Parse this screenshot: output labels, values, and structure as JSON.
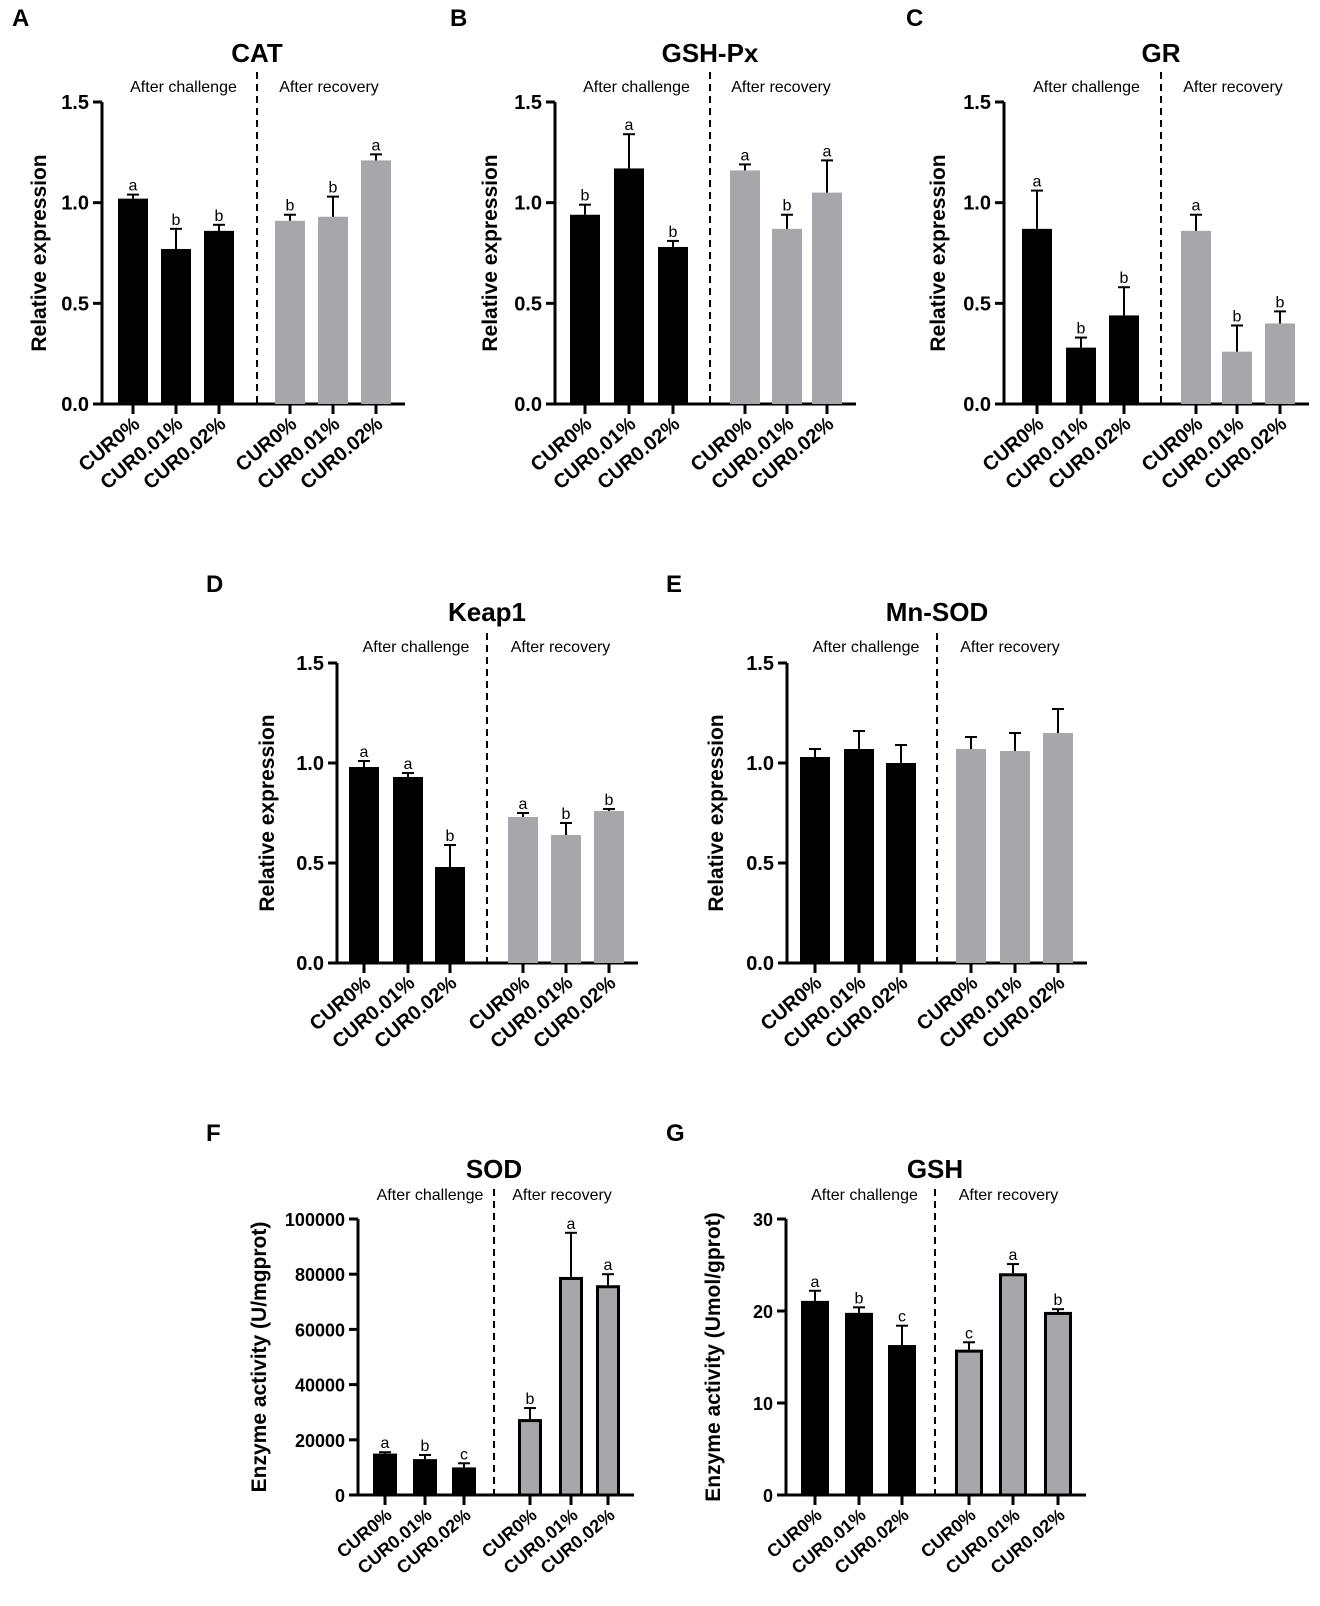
{
  "figure": {
    "group_labels": [
      "After challenge",
      "After recovery"
    ],
    "colors": {
      "challenge": "#000000",
      "recovery": "#a7a6ab",
      "axis": "#000000"
    }
  },
  "chart_data": [
    {
      "panel": "A",
      "type": "bar",
      "title": "CAT",
      "ylabel": "Relative expression",
      "ylim": [
        0,
        1.5
      ],
      "yticks": [
        0.0,
        0.5,
        1.0,
        1.5
      ],
      "ytick_labels": [
        "0.0",
        "0.5",
        "1.0",
        "1.5"
      ],
      "categories": [
        "CUR0%",
        "CUR0.01%",
        "CUR0.02%",
        "CUR0%",
        "CUR0.01%",
        "CUR0.02%"
      ],
      "groups": [
        "After challenge",
        "After challenge",
        "After challenge",
        "After recovery",
        "After recovery",
        "After recovery"
      ],
      "values": [
        1.02,
        0.77,
        0.86,
        0.91,
        0.93,
        1.21
      ],
      "errors": [
        0.02,
        0.1,
        0.03,
        0.03,
        0.1,
        0.03
      ],
      "letters": [
        "a",
        "b",
        "b",
        "b",
        "b",
        "a"
      ]
    },
    {
      "panel": "B",
      "type": "bar",
      "title": "GSH-Px",
      "ylabel": "Relative expression",
      "ylim": [
        0,
        1.5
      ],
      "yticks": [
        0.0,
        0.5,
        1.0,
        1.5
      ],
      "ytick_labels": [
        "0.0",
        "0.5",
        "1.0",
        "1.5"
      ],
      "categories": [
        "CUR0%",
        "CUR0.01%",
        "CUR0.02%",
        "CUR0%",
        "CUR0.01%",
        "CUR0.02%"
      ],
      "groups": [
        "After challenge",
        "After challenge",
        "After challenge",
        "After recovery",
        "After recovery",
        "After recovery"
      ],
      "values": [
        0.94,
        1.17,
        0.78,
        1.16,
        0.87,
        1.05
      ],
      "errors": [
        0.05,
        0.17,
        0.03,
        0.03,
        0.07,
        0.16
      ],
      "letters": [
        "b",
        "a",
        "b",
        "a",
        "b",
        "a"
      ]
    },
    {
      "panel": "C",
      "type": "bar",
      "title": "GR",
      "ylabel": "Relative expression",
      "ylim": [
        0,
        1.5
      ],
      "yticks": [
        0.0,
        0.5,
        1.0,
        1.5
      ],
      "ytick_labels": [
        "0.0",
        "0.5",
        "1.0",
        "1.5"
      ],
      "categories": [
        "CUR0%",
        "CUR0.01%",
        "CUR0.02%",
        "CUR0%",
        "CUR0.01%",
        "CUR0.02%"
      ],
      "groups": [
        "After challenge",
        "After challenge",
        "After challenge",
        "After recovery",
        "After recovery",
        "After recovery"
      ],
      "values": [
        0.87,
        0.28,
        0.44,
        0.86,
        0.26,
        0.4
      ],
      "errors": [
        0.19,
        0.05,
        0.14,
        0.08,
        0.13,
        0.06
      ],
      "letters": [
        "a",
        "b",
        "b",
        "a",
        "b",
        "b"
      ]
    },
    {
      "panel": "D",
      "type": "bar",
      "title": "Keap1",
      "ylabel": "Relative expression",
      "ylim": [
        0,
        1.5
      ],
      "yticks": [
        0.0,
        0.5,
        1.0,
        1.5
      ],
      "ytick_labels": [
        "0.0",
        "0.5",
        "1.0",
        "1.5"
      ],
      "categories": [
        "CUR0%",
        "CUR0.01%",
        "CUR0.02%",
        "CUR0%",
        "CUR0.01%",
        "CUR0.02%"
      ],
      "groups": [
        "After challenge",
        "After challenge",
        "After challenge",
        "After recovery",
        "After recovery",
        "After recovery"
      ],
      "values": [
        0.98,
        0.93,
        0.48,
        0.73,
        0.64,
        0.76
      ],
      "errors": [
        0.03,
        0.02,
        0.11,
        0.02,
        0.06,
        0.01
      ],
      "letters": [
        "a",
        "a",
        "b",
        "a",
        "b",
        "b"
      ]
    },
    {
      "panel": "E",
      "type": "bar",
      "title": "Mn-SOD",
      "ylabel": "Relative expression",
      "ylim": [
        0,
        1.5
      ],
      "yticks": [
        0.0,
        0.5,
        1.0,
        1.5
      ],
      "ytick_labels": [
        "0.0",
        "0.5",
        "1.0",
        "1.5"
      ],
      "categories": [
        "CUR0%",
        "CUR0.01%",
        "CUR0.02%",
        "CUR0%",
        "CUR0.01%",
        "CUR0.02%"
      ],
      "groups": [
        "After challenge",
        "After challenge",
        "After challenge",
        "After recovery",
        "After recovery",
        "After recovery"
      ],
      "values": [
        1.03,
        1.07,
        1.0,
        1.07,
        1.06,
        1.15
      ],
      "errors": [
        0.04,
        0.09,
        0.09,
        0.06,
        0.09,
        0.12
      ],
      "letters": [
        "",
        "",
        "",
        "",
        "",
        ""
      ]
    },
    {
      "panel": "F",
      "type": "bar",
      "title": "SOD",
      "ylabel": "Enzyme activity (U/mgprot)",
      "ylim": [
        0,
        100000
      ],
      "yticks": [
        0,
        20000,
        40000,
        60000,
        80000,
        100000
      ],
      "ytick_labels": [
        "0",
        "20000",
        "40000",
        "60000",
        "80000",
        "100000"
      ],
      "categories": [
        "CUR0%",
        "CUR0.01%",
        "CUR0.02%",
        "CUR0%",
        "CUR0.01%",
        "CUR0.02%"
      ],
      "groups": [
        "After challenge",
        "After challenge",
        "After challenge",
        "After recovery",
        "After recovery",
        "After recovery"
      ],
      "values": [
        15000,
        13000,
        10000,
        27500,
        79000,
        76000
      ],
      "errors": [
        500,
        1500,
        1500,
        4000,
        16000,
        4000
      ],
      "letters": [
        "a",
        "b",
        "c",
        "b",
        "a",
        "a"
      ]
    },
    {
      "panel": "G",
      "type": "bar",
      "title": "GSH",
      "ylabel": "Enzyme activity (Umol/gprot)",
      "ylim": [
        0,
        30
      ],
      "yticks": [
        0,
        10,
        20,
        30
      ],
      "ytick_labels": [
        "0",
        "10",
        "20",
        "30"
      ],
      "categories": [
        "CUR0%",
        "CUR0.01%",
        "CUR0.02%",
        "CUR0%",
        "CUR0.01%",
        "CUR0.02%"
      ],
      "groups": [
        "After challenge",
        "After challenge",
        "After challenge",
        "After recovery",
        "After recovery",
        "After recovery"
      ],
      "values": [
        21.1,
        19.8,
        16.3,
        15.8,
        24.1,
        19.9
      ],
      "errors": [
        1.1,
        0.6,
        2.1,
        0.8,
        1.0,
        0.3
      ],
      "letters": [
        "a",
        "b",
        "c",
        "c",
        "a",
        "b"
      ]
    }
  ]
}
